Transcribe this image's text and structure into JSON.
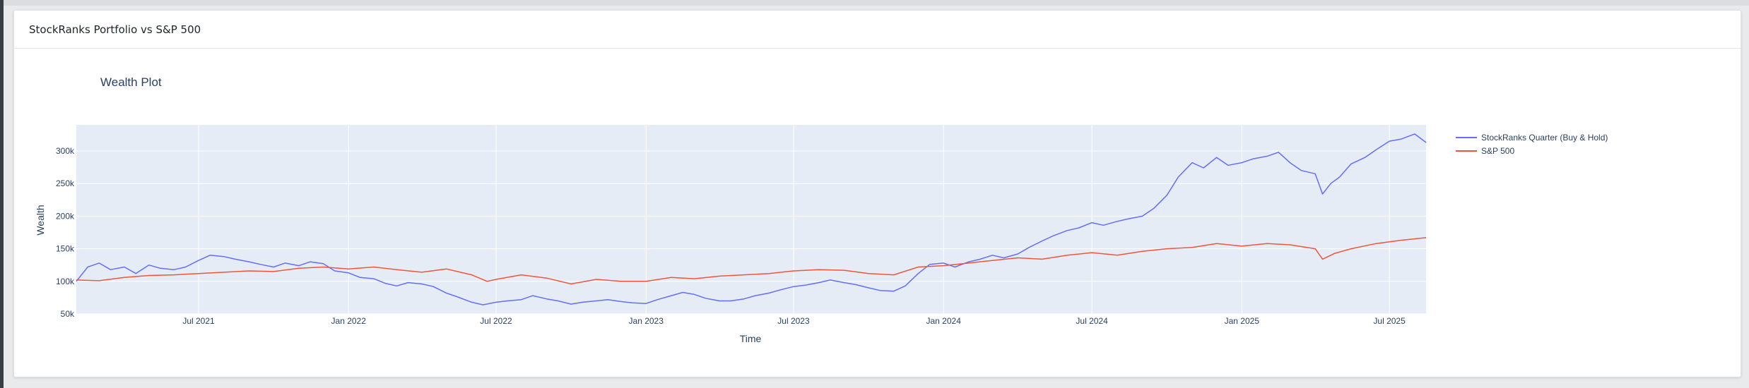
{
  "card": {
    "title": "StockRanks Portfolio vs S&P 500"
  },
  "chart_data": {
    "type": "line",
    "title": "Wealth Plot",
    "xlabel": "Time",
    "ylabel": "Wealth",
    "xlim": [
      "2021-02-01",
      "2025-08-15"
    ],
    "ylim": [
      50000,
      340000
    ],
    "x_ticks": [
      {
        "date": "2021-07-01",
        "label": "Jul 2021"
      },
      {
        "date": "2022-01-01",
        "label": "Jan 2022"
      },
      {
        "date": "2022-07-01",
        "label": "Jul 2022"
      },
      {
        "date": "2023-01-01",
        "label": "Jan 2023"
      },
      {
        "date": "2023-07-01",
        "label": "Jul 2023"
      },
      {
        "date": "2024-01-01",
        "label": "Jan 2024"
      },
      {
        "date": "2024-07-01",
        "label": "Jul 2024"
      },
      {
        "date": "2025-01-01",
        "label": "Jan 2025"
      },
      {
        "date": "2025-07-01",
        "label": "Jul 2025"
      }
    ],
    "y_ticks": [
      {
        "value": 50000,
        "label": "50k"
      },
      {
        "value": 100000,
        "label": "100k"
      },
      {
        "value": 150000,
        "label": "150k"
      },
      {
        "value": 200000,
        "label": "200k"
      },
      {
        "value": 250000,
        "label": "250k"
      },
      {
        "value": 300000,
        "label": "300k"
      }
    ],
    "grid": true,
    "legend_position": "right",
    "series": [
      {
        "name": "StockRanks Quarter (Buy & Hold)",
        "color": "#636efa",
        "points": [
          [
            "2021-02-01",
            100000
          ],
          [
            "2021-02-15",
            122000
          ],
          [
            "2021-03-01",
            128000
          ],
          [
            "2021-03-15",
            118000
          ],
          [
            "2021-04-01",
            122000
          ],
          [
            "2021-04-15",
            112000
          ],
          [
            "2021-05-01",
            125000
          ],
          [
            "2021-05-15",
            120000
          ],
          [
            "2021-06-01",
            118000
          ],
          [
            "2021-06-15",
            122000
          ],
          [
            "2021-07-01",
            132000
          ],
          [
            "2021-07-15",
            140000
          ],
          [
            "2021-08-01",
            138000
          ],
          [
            "2021-08-15",
            134000
          ],
          [
            "2021-09-01",
            130000
          ],
          [
            "2021-09-15",
            126000
          ],
          [
            "2021-10-01",
            122000
          ],
          [
            "2021-10-15",
            128000
          ],
          [
            "2021-11-01",
            124000
          ],
          [
            "2021-11-15",
            130000
          ],
          [
            "2021-12-01",
            127000
          ],
          [
            "2021-12-15",
            116000
          ],
          [
            "2022-01-01",
            113000
          ],
          [
            "2022-01-15",
            106000
          ],
          [
            "2022-02-01",
            104000
          ],
          [
            "2022-02-15",
            97000
          ],
          [
            "2022-03-01",
            93000
          ],
          [
            "2022-03-15",
            98000
          ],
          [
            "2022-04-01",
            96000
          ],
          [
            "2022-04-15",
            92000
          ],
          [
            "2022-05-01",
            82000
          ],
          [
            "2022-05-15",
            76000
          ],
          [
            "2022-06-01",
            68000
          ],
          [
            "2022-06-15",
            64000
          ],
          [
            "2022-07-01",
            68000
          ],
          [
            "2022-07-15",
            70000
          ],
          [
            "2022-08-01",
            72000
          ],
          [
            "2022-08-15",
            78000
          ],
          [
            "2022-09-01",
            73000
          ],
          [
            "2022-09-15",
            70000
          ],
          [
            "2022-10-01",
            65000
          ],
          [
            "2022-10-15",
            68000
          ],
          [
            "2022-11-01",
            70000
          ],
          [
            "2022-11-15",
            72000
          ],
          [
            "2022-12-01",
            69000
          ],
          [
            "2022-12-15",
            67000
          ],
          [
            "2023-01-01",
            66000
          ],
          [
            "2023-01-15",
            72000
          ],
          [
            "2023-02-01",
            78000
          ],
          [
            "2023-02-15",
            83000
          ],
          [
            "2023-03-01",
            80000
          ],
          [
            "2023-03-15",
            74000
          ],
          [
            "2023-04-01",
            70000
          ],
          [
            "2023-04-15",
            70000
          ],
          [
            "2023-05-01",
            73000
          ],
          [
            "2023-05-15",
            78000
          ],
          [
            "2023-06-01",
            82000
          ],
          [
            "2023-06-15",
            87000
          ],
          [
            "2023-07-01",
            92000
          ],
          [
            "2023-07-15",
            94000
          ],
          [
            "2023-08-01",
            98000
          ],
          [
            "2023-08-15",
            102000
          ],
          [
            "2023-09-01",
            98000
          ],
          [
            "2023-09-15",
            95000
          ],
          [
            "2023-10-01",
            90000
          ],
          [
            "2023-10-15",
            86000
          ],
          [
            "2023-11-01",
            85000
          ],
          [
            "2023-11-15",
            93000
          ],
          [
            "2023-12-01",
            112000
          ],
          [
            "2023-12-15",
            126000
          ],
          [
            "2024-01-01",
            128000
          ],
          [
            "2024-01-15",
            122000
          ],
          [
            "2024-02-01",
            130000
          ],
          [
            "2024-02-15",
            134000
          ],
          [
            "2024-03-01",
            140000
          ],
          [
            "2024-03-15",
            136000
          ],
          [
            "2024-04-01",
            142000
          ],
          [
            "2024-04-15",
            152000
          ],
          [
            "2024-05-01",
            162000
          ],
          [
            "2024-05-15",
            170000
          ],
          [
            "2024-06-01",
            178000
          ],
          [
            "2024-06-15",
            182000
          ],
          [
            "2024-07-01",
            190000
          ],
          [
            "2024-07-15",
            186000
          ],
          [
            "2024-08-01",
            192000
          ],
          [
            "2024-08-15",
            196000
          ],
          [
            "2024-09-01",
            200000
          ],
          [
            "2024-09-15",
            212000
          ],
          [
            "2024-10-01",
            232000
          ],
          [
            "2024-10-15",
            260000
          ],
          [
            "2024-11-01",
            282000
          ],
          [
            "2024-11-15",
            274000
          ],
          [
            "2024-12-01",
            290000
          ],
          [
            "2024-12-15",
            278000
          ],
          [
            "2025-01-01",
            282000
          ],
          [
            "2025-01-15",
            288000
          ],
          [
            "2025-02-01",
            292000
          ],
          [
            "2025-02-15",
            298000
          ],
          [
            "2025-03-01",
            282000
          ],
          [
            "2025-03-15",
            270000
          ],
          [
            "2025-04-01",
            265000
          ],
          [
            "2025-04-10",
            234000
          ],
          [
            "2025-04-20",
            250000
          ],
          [
            "2025-05-01",
            260000
          ],
          [
            "2025-05-15",
            280000
          ],
          [
            "2025-06-01",
            290000
          ],
          [
            "2025-06-15",
            302000
          ],
          [
            "2025-07-01",
            315000
          ],
          [
            "2025-07-15",
            318000
          ],
          [
            "2025-08-01",
            326000
          ],
          [
            "2025-08-15",
            313000
          ]
        ]
      },
      {
        "name": "S&P 500",
        "color": "#ef553b",
        "points": [
          [
            "2021-02-01",
            102000
          ],
          [
            "2021-03-01",
            101000
          ],
          [
            "2021-04-01",
            106000
          ],
          [
            "2021-05-01",
            109000
          ],
          [
            "2021-06-01",
            110000
          ],
          [
            "2021-07-01",
            112000
          ],
          [
            "2021-08-01",
            114000
          ],
          [
            "2021-09-01",
            116000
          ],
          [
            "2021-10-01",
            115000
          ],
          [
            "2021-11-01",
            120000
          ],
          [
            "2021-12-01",
            122000
          ],
          [
            "2022-01-01",
            119000
          ],
          [
            "2022-02-01",
            122000
          ],
          [
            "2022-03-01",
            118000
          ],
          [
            "2022-04-01",
            114000
          ],
          [
            "2022-05-01",
            119000
          ],
          [
            "2022-06-01",
            110000
          ],
          [
            "2022-06-20",
            100000
          ],
          [
            "2022-07-01",
            103000
          ],
          [
            "2022-08-01",
            110000
          ],
          [
            "2022-09-01",
            105000
          ],
          [
            "2022-10-01",
            96000
          ],
          [
            "2022-11-01",
            103000
          ],
          [
            "2022-12-01",
            100000
          ],
          [
            "2023-01-01",
            100000
          ],
          [
            "2023-02-01",
            106000
          ],
          [
            "2023-03-01",
            104000
          ],
          [
            "2023-04-01",
            108000
          ],
          [
            "2023-05-01",
            110000
          ],
          [
            "2023-06-01",
            112000
          ],
          [
            "2023-07-01",
            116000
          ],
          [
            "2023-08-01",
            118000
          ],
          [
            "2023-09-01",
            117000
          ],
          [
            "2023-10-01",
            112000
          ],
          [
            "2023-11-01",
            110000
          ],
          [
            "2023-12-01",
            122000
          ],
          [
            "2024-01-01",
            124000
          ],
          [
            "2024-02-01",
            128000
          ],
          [
            "2024-03-01",
            132000
          ],
          [
            "2024-04-01",
            136000
          ],
          [
            "2024-05-01",
            134000
          ],
          [
            "2024-06-01",
            140000
          ],
          [
            "2024-07-01",
            144000
          ],
          [
            "2024-08-01",
            140000
          ],
          [
            "2024-09-01",
            146000
          ],
          [
            "2024-10-01",
            150000
          ],
          [
            "2024-11-01",
            152000
          ],
          [
            "2024-12-01",
            158000
          ],
          [
            "2025-01-01",
            154000
          ],
          [
            "2025-02-01",
            158000
          ],
          [
            "2025-03-01",
            156000
          ],
          [
            "2025-04-01",
            150000
          ],
          [
            "2025-04-10",
            134000
          ],
          [
            "2025-04-25",
            143000
          ],
          [
            "2025-05-15",
            150000
          ],
          [
            "2025-06-15",
            158000
          ],
          [
            "2025-07-15",
            163000
          ],
          [
            "2025-08-15",
            167000
          ]
        ]
      }
    ]
  }
}
